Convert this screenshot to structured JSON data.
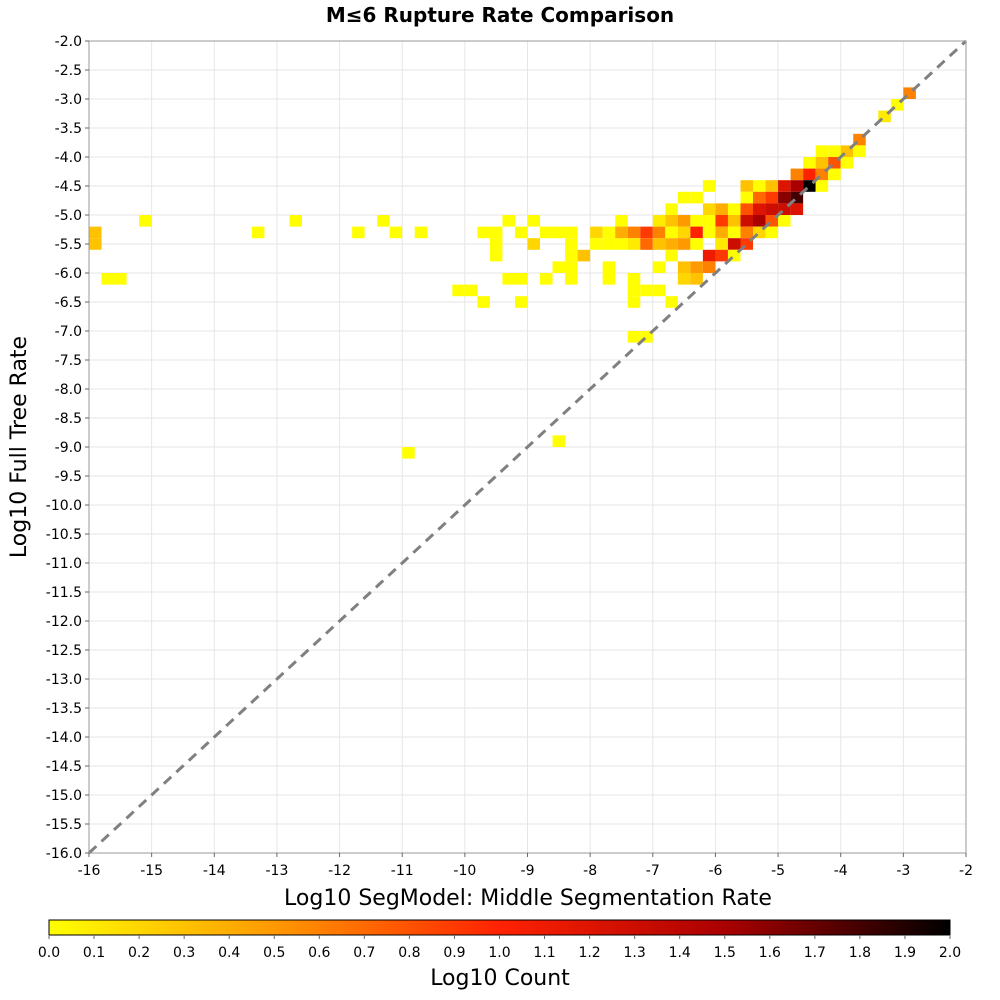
{
  "chart_data": {
    "type": "heatmap",
    "title": "M≤6 Rupture Rate Comparison",
    "xlabel": "Log10 SegModel: Middle Segmentation Rate",
    "ylabel": "Log10 Full Tree Rate",
    "xlim": [
      -16,
      -2
    ],
    "ylim": [
      -16,
      -2
    ],
    "x_ticks": [
      "-16",
      "-15",
      "-14",
      "-13",
      "-12",
      "-11",
      "-10",
      "-9",
      "-8",
      "-7",
      "-6",
      "-5",
      "-4",
      "-3",
      "-2"
    ],
    "y_ticks": [
      "-2.0",
      "-2.5",
      "-3.0",
      "-3.5",
      "-4.0",
      "-4.5",
      "-5.0",
      "-5.5",
      "-6.0",
      "-6.5",
      "-7.0",
      "-7.5",
      "-8.0",
      "-8.5",
      "-9.0",
      "-9.5",
      "-10.0",
      "-10.5",
      "-11.0",
      "-11.5",
      "-12.0",
      "-12.5",
      "-13.0",
      "-13.5",
      "-14.0",
      "-14.5",
      "-15.0",
      "-15.5",
      "-16.0"
    ],
    "grid": true,
    "reference_line": {
      "from": [
        -16,
        -16
      ],
      "to": [
        -2,
        -2
      ],
      "style": "dashed",
      "color": "#808080"
    },
    "bin_size": 0.2,
    "colorbar": {
      "label": "Log10 Count",
      "range": [
        0.0,
        2.0
      ],
      "ticks": [
        "0.0",
        "0.1",
        "0.2",
        "0.3",
        "0.4",
        "0.5",
        "0.6",
        "0.7",
        "0.8",
        "0.9",
        "1.0",
        "1.1",
        "1.2",
        "1.3",
        "1.4",
        "1.5",
        "1.6",
        "1.7",
        "1.8",
        "1.9",
        "2.0"
      ],
      "placement": "bottom",
      "stops": [
        "#ffff00",
        "#ff9900",
        "#ff2200",
        "#aa0000",
        "#000000"
      ]
    },
    "cells": [
      {
        "x": -15.9,
        "y": -5.3,
        "value": 0.3
      },
      {
        "x": -15.9,
        "y": -5.5,
        "value": 0.3
      },
      {
        "x": -15.7,
        "y": -6.1,
        "value": 0.0
      },
      {
        "x": -15.5,
        "y": -6.1,
        "value": 0.0
      },
      {
        "x": -15.1,
        "y": -5.1,
        "value": 0.0
      },
      {
        "x": -13.3,
        "y": -5.3,
        "value": 0.0
      },
      {
        "x": -12.7,
        "y": -5.1,
        "value": 0.0
      },
      {
        "x": -11.7,
        "y": -5.3,
        "value": 0.0
      },
      {
        "x": -11.3,
        "y": -5.1,
        "value": 0.0
      },
      {
        "x": -11.1,
        "y": -5.3,
        "value": 0.0
      },
      {
        "x": -10.7,
        "y": -5.3,
        "value": 0.0
      },
      {
        "x": -10.9,
        "y": -9.1,
        "value": 0.0
      },
      {
        "x": -10.1,
        "y": -6.3,
        "value": 0.0
      },
      {
        "x": -9.9,
        "y": -6.3,
        "value": 0.0
      },
      {
        "x": -9.7,
        "y": -5.3,
        "value": 0.0
      },
      {
        "x": -9.5,
        "y": -5.3,
        "value": 0.0
      },
      {
        "x": -9.5,
        "y": -5.5,
        "value": 0.0
      },
      {
        "x": -9.5,
        "y": -5.7,
        "value": 0.0
      },
      {
        "x": -9.7,
        "y": -6.5,
        "value": 0.0
      },
      {
        "x": -9.3,
        "y": -5.1,
        "value": 0.0
      },
      {
        "x": -9.3,
        "y": -6.1,
        "value": 0.0
      },
      {
        "x": -9.1,
        "y": -6.1,
        "value": 0.0
      },
      {
        "x": -9.1,
        "y": -6.5,
        "value": 0.0
      },
      {
        "x": -9.1,
        "y": -5.3,
        "value": 0.0
      },
      {
        "x": -8.9,
        "y": -5.1,
        "value": 0.0
      },
      {
        "x": -8.9,
        "y": -5.5,
        "value": 0.2
      },
      {
        "x": -8.7,
        "y": -5.3,
        "value": 0.0
      },
      {
        "x": -8.5,
        "y": -5.3,
        "value": 0.0
      },
      {
        "x": -8.7,
        "y": -6.1,
        "value": 0.0
      },
      {
        "x": -8.5,
        "y": -5.9,
        "value": 0.0
      },
      {
        "x": -8.3,
        "y": -5.3,
        "value": 0.0
      },
      {
        "x": -8.3,
        "y": -5.5,
        "value": 0.0
      },
      {
        "x": -8.3,
        "y": -5.7,
        "value": 0.0
      },
      {
        "x": -8.3,
        "y": -5.9,
        "value": 0.0
      },
      {
        "x": -8.3,
        "y": -6.1,
        "value": 0.0
      },
      {
        "x": -8.1,
        "y": -5.7,
        "value": 0.3
      },
      {
        "x": -8.5,
        "y": -8.9,
        "value": 0.0
      },
      {
        "x": -7.9,
        "y": -5.3,
        "value": 0.2
      },
      {
        "x": -7.9,
        "y": -5.5,
        "value": 0.0
      },
      {
        "x": -7.7,
        "y": -5.3,
        "value": 0.0
      },
      {
        "x": -7.7,
        "y": -5.5,
        "value": 0.0
      },
      {
        "x": -7.5,
        "y": -5.5,
        "value": 0.0
      },
      {
        "x": -7.5,
        "y": -5.1,
        "value": 0.0
      },
      {
        "x": -7.5,
        "y": -5.3,
        "value": 0.4
      },
      {
        "x": -7.3,
        "y": -5.3,
        "value": 0.6
      },
      {
        "x": -7.3,
        "y": -5.5,
        "value": 0.1
      },
      {
        "x": -7.7,
        "y": -6.1,
        "value": 0.0
      },
      {
        "x": -7.7,
        "y": -5.9,
        "value": 0.0
      },
      {
        "x": -7.3,
        "y": -6.1,
        "value": 0.0
      },
      {
        "x": -7.3,
        "y": -6.3,
        "value": 0.0
      },
      {
        "x": -7.3,
        "y": -6.5,
        "value": 0.0
      },
      {
        "x": -7.1,
        "y": -6.3,
        "value": 0.0
      },
      {
        "x": -6.9,
        "y": -6.3,
        "value": 0.0
      },
      {
        "x": -6.7,
        "y": -6.5,
        "value": 0.0
      },
      {
        "x": -7.3,
        "y": -7.1,
        "value": 0.0
      },
      {
        "x": -7.1,
        "y": -7.1,
        "value": 0.0
      },
      {
        "x": -7.1,
        "y": -5.3,
        "value": 0.9
      },
      {
        "x": -7.1,
        "y": -5.5,
        "value": 0.7
      },
      {
        "x": -6.9,
        "y": -5.3,
        "value": 0.6
      },
      {
        "x": -6.9,
        "y": -5.5,
        "value": 0.3
      },
      {
        "x": -6.9,
        "y": -5.1,
        "value": 0.1
      },
      {
        "x": -6.9,
        "y": -5.9,
        "value": 0.0
      },
      {
        "x": -6.7,
        "y": -4.9,
        "value": 0.0
      },
      {
        "x": -6.7,
        "y": -5.1,
        "value": 0.3
      },
      {
        "x": -6.7,
        "y": -5.3,
        "value": 0.0
      },
      {
        "x": -6.7,
        "y": -5.5,
        "value": 0.4
      },
      {
        "x": -6.7,
        "y": -5.7,
        "value": 0.0
      },
      {
        "x": -6.5,
        "y": -4.7,
        "value": 0.0
      },
      {
        "x": -6.5,
        "y": -5.1,
        "value": 0.5
      },
      {
        "x": -6.5,
        "y": -5.3,
        "value": 0.2
      },
      {
        "x": -6.5,
        "y": -5.5,
        "value": 0.5
      },
      {
        "x": -6.5,
        "y": -5.9,
        "value": 0.3
      },
      {
        "x": -6.5,
        "y": -6.1,
        "value": 0.2
      },
      {
        "x": -6.3,
        "y": -4.7,
        "value": 0.0
      },
      {
        "x": -6.3,
        "y": -5.1,
        "value": 0.0
      },
      {
        "x": -6.3,
        "y": -5.3,
        "value": 1.0
      },
      {
        "x": -6.3,
        "y": -5.5,
        "value": 0.0
      },
      {
        "x": -6.3,
        "y": -5.9,
        "value": 0.5
      },
      {
        "x": -6.3,
        "y": -6.1,
        "value": 0.3
      },
      {
        "x": -6.1,
        "y": -4.5,
        "value": 0.0
      },
      {
        "x": -6.1,
        "y": -4.9,
        "value": 0.2
      },
      {
        "x": -6.1,
        "y": -5.1,
        "value": 0.0
      },
      {
        "x": -6.1,
        "y": -5.3,
        "value": 0.0
      },
      {
        "x": -6.1,
        "y": -5.7,
        "value": 1.1
      },
      {
        "x": -6.1,
        "y": -5.9,
        "value": 0.6
      },
      {
        "x": -5.9,
        "y": -4.9,
        "value": 0.4
      },
      {
        "x": -5.9,
        "y": -5.1,
        "value": 0.9
      },
      {
        "x": -5.9,
        "y": -5.3,
        "value": 0.4
      },
      {
        "x": -5.9,
        "y": -5.5,
        "value": 0.1
      },
      {
        "x": -5.9,
        "y": -5.7,
        "value": 0.9
      },
      {
        "x": -5.7,
        "y": -4.9,
        "value": 0.0
      },
      {
        "x": -5.7,
        "y": -5.1,
        "value": 0.3
      },
      {
        "x": -5.7,
        "y": -5.3,
        "value": 0.0
      },
      {
        "x": -5.7,
        "y": -5.5,
        "value": 1.3
      },
      {
        "x": -5.7,
        "y": -5.7,
        "value": 0.0
      },
      {
        "x": -5.5,
        "y": -4.5,
        "value": 0.3
      },
      {
        "x": -5.5,
        "y": -4.7,
        "value": 0.0
      },
      {
        "x": -5.5,
        "y": -4.9,
        "value": 0.8
      },
      {
        "x": -5.5,
        "y": -5.1,
        "value": 1.3
      },
      {
        "x": -5.5,
        "y": -5.3,
        "value": 0.6
      },
      {
        "x": -5.5,
        "y": -5.5,
        "value": 0.9
      },
      {
        "x": -5.3,
        "y": -4.5,
        "value": 0.0
      },
      {
        "x": -5.3,
        "y": -4.7,
        "value": 0.7
      },
      {
        "x": -5.3,
        "y": -4.9,
        "value": 1.2
      },
      {
        "x": -5.3,
        "y": -5.1,
        "value": 1.5
      },
      {
        "x": -5.3,
        "y": -5.3,
        "value": 0.2
      },
      {
        "x": -5.1,
        "y": -4.5,
        "value": 0.3
      },
      {
        "x": -5.1,
        "y": -4.7,
        "value": 0.9
      },
      {
        "x": -5.1,
        "y": -4.9,
        "value": 1.3
      },
      {
        "x": -5.1,
        "y": -5.1,
        "value": 0.8
      },
      {
        "x": -5.1,
        "y": -5.3,
        "value": 0.0
      },
      {
        "x": -4.9,
        "y": -4.5,
        "value": 1.2
      },
      {
        "x": -4.9,
        "y": -4.7,
        "value": 1.6
      },
      {
        "x": -4.9,
        "y": -4.9,
        "value": 1.3
      },
      {
        "x": -4.9,
        "y": -5.1,
        "value": 0.0
      },
      {
        "x": -4.7,
        "y": -4.3,
        "value": 0.6
      },
      {
        "x": -4.7,
        "y": -4.5,
        "value": 1.5
      },
      {
        "x": -4.7,
        "y": -4.7,
        "value": 1.8
      },
      {
        "x": -4.7,
        "y": -4.9,
        "value": 1.2
      },
      {
        "x": -4.5,
        "y": -4.1,
        "value": 0.0
      },
      {
        "x": -4.5,
        "y": -4.3,
        "value": 1.0
      },
      {
        "x": -4.5,
        "y": -4.5,
        "value": 2.0
      },
      {
        "x": -4.3,
        "y": -3.9,
        "value": 0.0
      },
      {
        "x": -4.3,
        "y": -4.1,
        "value": 0.3
      },
      {
        "x": -4.3,
        "y": -4.3,
        "value": 0.6
      },
      {
        "x": -4.3,
        "y": -4.5,
        "value": 0.0
      },
      {
        "x": -4.1,
        "y": -3.9,
        "value": 0.0
      },
      {
        "x": -4.1,
        "y": -4.1,
        "value": 0.8
      },
      {
        "x": -4.1,
        "y": -4.3,
        "value": 0.0
      },
      {
        "x": -3.9,
        "y": -3.9,
        "value": 0.3
      },
      {
        "x": -3.9,
        "y": -4.1,
        "value": 0.0
      },
      {
        "x": -3.7,
        "y": -3.7,
        "value": 0.6
      },
      {
        "x": -3.7,
        "y": -3.9,
        "value": 0.0
      },
      {
        "x": -3.3,
        "y": -3.3,
        "value": 0.1
      },
      {
        "x": -3.1,
        "y": -3.1,
        "value": 0.0
      },
      {
        "x": -2.9,
        "y": -2.9,
        "value": 0.6
      }
    ]
  }
}
